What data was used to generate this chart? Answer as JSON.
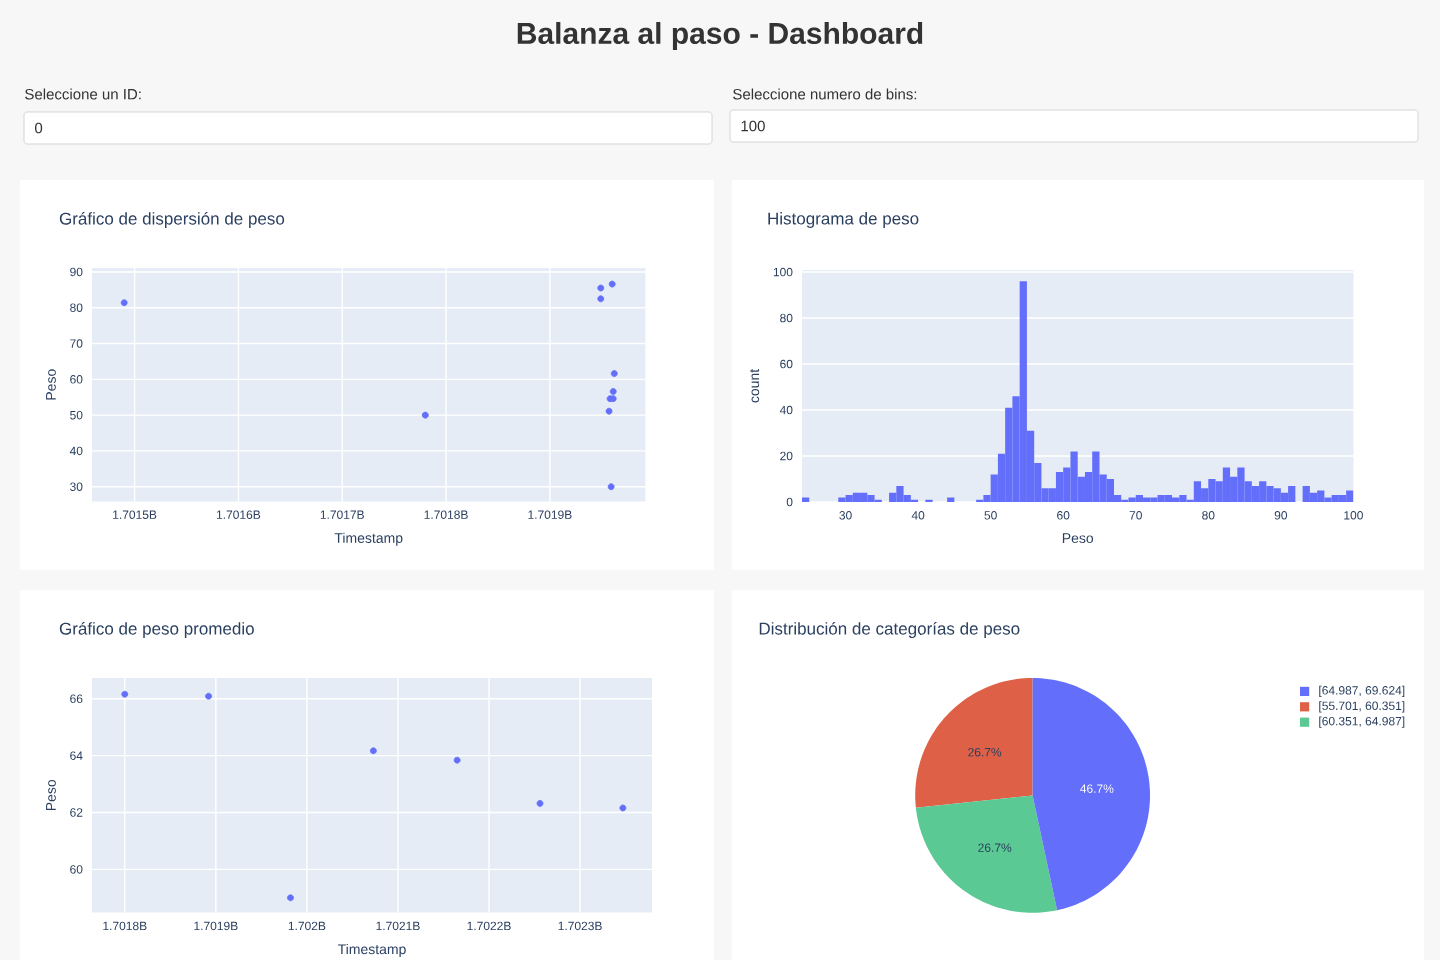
{
  "chart_data": [
    {
      "type": "other",
      "title": "Balanza al paso - Dashboard",
      "annotations": [
        "Seleccione un ID:",
        "0",
        "Seleccione numero de bins:",
        "100"
      ]
    },
    {
      "type": "scatter",
      "title": "Gráfico de dispersión de peso",
      "xlabel": "Timestamp",
      "ylabel": "Peso",
      "x": [
        1.70149,
        1.70178,
        1.701949,
        1.701949,
        1.70196,
        1.701962,
        1.701961,
        1.701958,
        1.701961,
        1.701957,
        1.701959
      ],
      "values": [
        81.4,
        50,
        85.5,
        82.5,
        86.6,
        61.6,
        56.6,
        54.6,
        54.6,
        51.1,
        30
      ],
      "color": "#636efa",
      "xlim": [
        1.701459,
        1.701992
      ],
      "ylim": [
        25.9,
        91.1
      ],
      "xticks": [
        {
          "value": 1.7015,
          "label": "1.7015B"
        },
        {
          "value": 1.7016,
          "label": "1.7016B"
        },
        {
          "value": 1.7017,
          "label": "1.7017B"
        },
        {
          "value": 1.7018,
          "label": "1.7018B"
        },
        {
          "value": 1.7019,
          "label": "1.7019B"
        }
      ],
      "yticks": [
        30,
        40,
        50,
        60,
        70,
        80,
        90
      ],
      "grid": true
    },
    {
      "type": "histogram",
      "title": "Histograma de peso",
      "xlabel": "Peso",
      "ylabel": "count",
      "bins": [
        24,
        25,
        26,
        27,
        28,
        29,
        30,
        31,
        32,
        33,
        34,
        35,
        36,
        37,
        38,
        39,
        40,
        41,
        42,
        43,
        44,
        45,
        46,
        47,
        48,
        49,
        50,
        51,
        52,
        53,
        54,
        55,
        56,
        57,
        58,
        59,
        60,
        61,
        62,
        63,
        64,
        65,
        66,
        67,
        68,
        69,
        70,
        71,
        72,
        73,
        74,
        75,
        76,
        77,
        78,
        79,
        80,
        81,
        82,
        83,
        84,
        85,
        86,
        87,
        88,
        89,
        90,
        91,
        92,
        93,
        94,
        95,
        96,
        97,
        98,
        99,
        100
      ],
      "values": [
        2,
        0,
        0,
        0,
        0,
        2,
        3,
        4,
        4,
        3,
        1,
        0,
        4,
        7,
        3,
        1,
        0,
        1,
        0,
        0,
        2,
        0,
        0,
        0,
        1,
        3,
        12,
        21,
        41,
        46,
        96,
        31,
        17,
        6,
        6,
        13,
        15,
        22,
        11,
        13,
        22,
        12,
        10,
        3,
        1,
        2,
        3,
        2,
        2,
        3,
        3,
        2,
        3,
        1,
        9,
        6,
        10,
        9,
        15,
        11,
        15,
        9,
        7,
        9,
        7,
        6,
        4,
        7,
        0,
        7,
        4,
        5,
        2,
        3,
        3,
        5
      ],
      "color": "#636efa",
      "xlim": [
        24,
        100
      ],
      "ylim": [
        0,
        100.9
      ],
      "xticks": [
        30,
        40,
        50,
        60,
        70,
        80,
        90,
        100
      ],
      "yticks": [
        0,
        20,
        40,
        60,
        80,
        100
      ],
      "grid": "y"
    },
    {
      "type": "scatter",
      "title": "Gráfico de peso promedio",
      "xlabel": "Timestamp",
      "ylabel": "Peso",
      "x": [
        1.7018,
        1.701892,
        1.701982,
        1.702073,
        1.702165,
        1.702256,
        1.702347
      ],
      "values": [
        66.16,
        66.09,
        59.0,
        64.17,
        63.84,
        62.32,
        62.16
      ],
      "color": "#636efa",
      "xlim": [
        1.701764,
        1.702379
      ],
      "ylim": [
        58.48,
        66.73
      ],
      "xticks": [
        {
          "value": 1.7018,
          "label": "1.7018B"
        },
        {
          "value": 1.7019,
          "label": "1.7019B"
        },
        {
          "value": 1.702,
          "label": "1.702B"
        },
        {
          "value": 1.7021,
          "label": "1.7021B"
        },
        {
          "value": 1.7022,
          "label": "1.7022B"
        },
        {
          "value": 1.7023,
          "label": "1.7023B"
        }
      ],
      "yticks": [
        60,
        62,
        64,
        66
      ],
      "grid": true
    },
    {
      "type": "pie",
      "title": "Distribución de categorías de peso",
      "categories": [
        "[64.987, 69.624]",
        "[55.701, 60.351]",
        "[60.351, 64.987]"
      ],
      "values": [
        46.7,
        26.7,
        26.7
      ],
      "value_labels": [
        "46.7%",
        "26.7%",
        "26.7%"
      ],
      "colors": [
        "#636efa",
        "#de6046",
        "#5bc994"
      ],
      "legend": "top right"
    }
  ]
}
